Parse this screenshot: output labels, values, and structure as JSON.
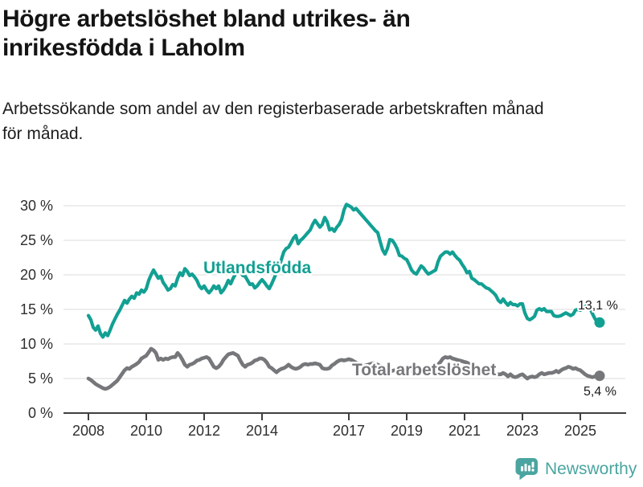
{
  "header": {
    "title_lines": [
      "Högre arbetslöshet bland utrikes- än",
      "inrikesfödda i Laholm"
    ],
    "subtitle_lines": [
      "Arbetssökande som andel av den registerbaserade arbetskraften månad",
      "för månad."
    ]
  },
  "footer": {
    "brand": "Newsworthy"
  },
  "colors": {
    "accent": "#12a093",
    "gray": "#76777a",
    "grid": "#dbdbdb",
    "axis": "#3f3f3f",
    "ink": "#1a1a1a",
    "brand": "#4aa5a0"
  },
  "chart_data": {
    "type": "line",
    "title": "Högre arbetslöshet bland utrikes- än inrikesfödda i Laholm",
    "subtitle": "Arbetssökande som andel av den registerbaserade arbetskraften månad för månad.",
    "xlabel": "",
    "ylabel": "",
    "frequency": "monthly",
    "x_start": "2008-01",
    "x_end": "2025-09",
    "ylim": [
      0,
      30
    ],
    "grid": "horizontal",
    "legend": "inline-labels",
    "y_axis": {
      "ticks": [
        {
          "value": 0,
          "label": "0 %"
        },
        {
          "value": 5,
          "label": "5 %"
        },
        {
          "value": 10,
          "label": "10 %"
        },
        {
          "value": 15,
          "label": "15 %"
        },
        {
          "value": 20,
          "label": "20 %"
        },
        {
          "value": 25,
          "label": "25 %"
        },
        {
          "value": 30,
          "label": "30 %"
        }
      ]
    },
    "x_axis": {
      "ticks": [
        {
          "value": 2008,
          "label": "2008"
        },
        {
          "value": 2010,
          "label": "2010"
        },
        {
          "value": 2012,
          "label": "2012"
        },
        {
          "value": 2014,
          "label": "2014"
        },
        {
          "value": 2017,
          "label": "2017"
        },
        {
          "value": 2019,
          "label": "2019"
        },
        {
          "value": 2021,
          "label": "2021"
        },
        {
          "value": 2023,
          "label": "2023"
        },
        {
          "value": 2025,
          "label": "2025"
        }
      ]
    },
    "series": [
      {
        "name": "Utlandsfödda",
        "color": "#12a093",
        "end_label": "13,1 %",
        "end_value": 13.1,
        "values": [
          14.1,
          13.5,
          12.4,
          12.0,
          12.6,
          11.5,
          11.0,
          11.6,
          11.2,
          12.0,
          12.9,
          13.6,
          14.3,
          14.9,
          15.6,
          16.3,
          15.9,
          16.5,
          16.9,
          16.6,
          17.4,
          17.2,
          17.8,
          17.5,
          18.0,
          19.2,
          20.0,
          20.7,
          20.1,
          19.5,
          19.8,
          18.9,
          18.4,
          17.8,
          18.0,
          18.6,
          18.4,
          19.5,
          20.3,
          19.9,
          20.9,
          20.5,
          19.9,
          20.1,
          19.7,
          19.2,
          18.4,
          18.0,
          18.4,
          17.8,
          17.4,
          17.8,
          18.4,
          18.0,
          18.4,
          17.4,
          17.8,
          18.4,
          19.2,
          18.7,
          19.5,
          20.1,
          21.0,
          20.7,
          19.9,
          19.8,
          19.2,
          18.6,
          18.7,
          18.1,
          18.4,
          18.9,
          19.3,
          18.9,
          18.4,
          18.0,
          18.7,
          19.5,
          20.3,
          21.0,
          22.2,
          23.3,
          23.8,
          24.0,
          24.6,
          25.3,
          25.7,
          24.5,
          25.0,
          25.3,
          25.7,
          26.1,
          26.5,
          27.3,
          27.9,
          27.4,
          26.9,
          27.3,
          28.3,
          27.7,
          26.5,
          26.7,
          26.3,
          26.9,
          27.3,
          28.0,
          29.4,
          30.2,
          30.0,
          29.8,
          29.4,
          29.6,
          29.2,
          28.8,
          28.4,
          28.0,
          27.6,
          27.2,
          26.8,
          26.4,
          26.1,
          24.8,
          23.6,
          23.0,
          23.8,
          25.1,
          25.0,
          24.5,
          23.8,
          22.8,
          22.7,
          22.4,
          22.2,
          21.5,
          20.7,
          20.3,
          20.1,
          20.7,
          21.3,
          21.0,
          20.5,
          20.1,
          20.3,
          20.5,
          20.7,
          21.9,
          22.7,
          23.0,
          23.3,
          23.3,
          23.0,
          23.3,
          22.8,
          22.4,
          22.1,
          21.5,
          21.0,
          20.3,
          20.5,
          19.5,
          19.3,
          19.0,
          18.7,
          18.7,
          18.4,
          18.1,
          18.0,
          17.7,
          17.4,
          17.0,
          16.3,
          16.0,
          16.5,
          16.0,
          15.6,
          16.0,
          15.7,
          15.7,
          15.5,
          15.8,
          15.8,
          14.5,
          13.7,
          13.5,
          13.7,
          14.0,
          14.9,
          15.1,
          14.9,
          15.1,
          14.7,
          14.7,
          14.7,
          14.1,
          14.0,
          14.0,
          14.1,
          14.3,
          14.5,
          14.3,
          14.1,
          14.3,
          14.9,
          15.0,
          14.9,
          15.1,
          15.4,
          15.6,
          15.2,
          14.4,
          13.7,
          13.2,
          13.1
        ]
      },
      {
        "name": "Total arbetslöshet",
        "color": "#76777a",
        "end_label": "5,4 %",
        "end_value": 5.4,
        "values": [
          5.0,
          4.8,
          4.5,
          4.2,
          4.0,
          3.8,
          3.6,
          3.5,
          3.6,
          3.8,
          4.1,
          4.4,
          4.7,
          5.2,
          5.7,
          6.2,
          6.5,
          6.4,
          6.7,
          6.9,
          7.1,
          7.4,
          7.9,
          8.1,
          8.3,
          8.8,
          9.3,
          9.1,
          8.7,
          7.7,
          7.9,
          7.7,
          7.9,
          7.8,
          8.0,
          8.1,
          8.1,
          8.7,
          8.3,
          7.7,
          7.0,
          6.7,
          7.0,
          7.1,
          7.3,
          7.6,
          7.7,
          7.9,
          8.0,
          8.1,
          7.9,
          7.3,
          6.7,
          6.5,
          6.7,
          7.1,
          7.7,
          8.1,
          8.5,
          8.6,
          8.7,
          8.5,
          8.3,
          7.6,
          7.0,
          6.7,
          7.0,
          7.1,
          7.3,
          7.6,
          7.7,
          7.9,
          7.9,
          7.7,
          7.3,
          6.7,
          6.5,
          6.2,
          5.9,
          6.2,
          6.4,
          6.5,
          6.7,
          7.0,
          6.7,
          6.5,
          6.4,
          6.5,
          6.7,
          7.0,
          7.1,
          7.0,
          7.1,
          7.1,
          7.2,
          7.1,
          7.0,
          6.5,
          6.4,
          6.4,
          6.5,
          6.9,
          7.1,
          7.4,
          7.6,
          7.7,
          7.6,
          7.7,
          7.8,
          7.7,
          7.5,
          7.3,
          7.1,
          6.9,
          6.8,
          6.9,
          7.0,
          7.1,
          7.2,
          7.1,
          7.0,
          6.8,
          6.6,
          6.4,
          6.3,
          6.2,
          6.1,
          6.2,
          6.3,
          6.4,
          6.5,
          6.4,
          6.3,
          6.2,
          6.1,
          6.0,
          6.1,
          6.2,
          6.3,
          6.4,
          6.5,
          6.6,
          6.7,
          6.8,
          6.9,
          7.0,
          7.4,
          7.9,
          8.1,
          8.0,
          8.1,
          7.9,
          7.8,
          7.7,
          7.6,
          7.5,
          7.4,
          7.3,
          7.1,
          6.9,
          6.7,
          6.5,
          6.4,
          6.3,
          6.2,
          6.1,
          6.0,
          5.9,
          5.8,
          5.7,
          5.6,
          5.6,
          5.8,
          5.6,
          5.3,
          5.6,
          5.3,
          5.2,
          5.3,
          5.5,
          5.6,
          5.3,
          5.0,
          5.2,
          5.3,
          5.2,
          5.3,
          5.6,
          5.8,
          5.6,
          5.7,
          5.8,
          5.8,
          5.9,
          6.1,
          5.9,
          6.2,
          6.4,
          6.5,
          6.7,
          6.6,
          6.4,
          6.5,
          6.3,
          6.2,
          5.9,
          5.6,
          5.4,
          5.3,
          5.2,
          5.3,
          5.3,
          5.4
        ]
      }
    ]
  }
}
